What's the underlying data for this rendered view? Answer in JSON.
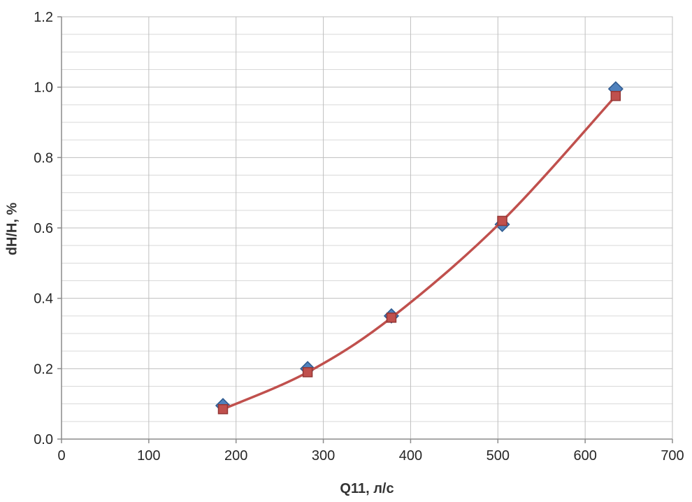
{
  "chart_data": {
    "type": "line",
    "title": "",
    "xlabel": "Q11, л/с",
    "ylabel": "dH/H, %",
    "xlim": [
      0,
      700
    ],
    "ylim": [
      0.0,
      1.2
    ],
    "x_tick_step": 100,
    "y_tick_step": 0.2,
    "y_minor_step": 0.05,
    "grid": true,
    "legend_position": "none",
    "x_tick_labels": [
      "0",
      "100",
      "200",
      "300",
      "400",
      "500",
      "600",
      "700"
    ],
    "y_tick_labels": [
      "0.0",
      "0.2",
      "0.4",
      "0.6",
      "0.8",
      "1.0",
      "1.2"
    ],
    "series": [
      {
        "name": "blue-diamond-points",
        "marker": "diamond",
        "has_line": false,
        "x": [
          185,
          282,
          378,
          505,
          635
        ],
        "y": [
          0.095,
          0.2,
          0.35,
          0.61,
          0.995
        ]
      },
      {
        "name": "red-square-line",
        "marker": "square",
        "has_line": true,
        "smooth": true,
        "x": [
          185,
          282,
          378,
          505,
          635
        ],
        "y": [
          0.085,
          0.19,
          0.345,
          0.62,
          0.975
        ]
      }
    ],
    "colors": {
      "red_series": "#C0504D",
      "red_marker_border": "#943634",
      "blue_series": "#4F81BD",
      "blue_marker_border": "#2E5A8F",
      "grid_major": "#BFBFBF",
      "grid_minor": "#D9D9D9",
      "axis_line": "#8C8C8C",
      "tick_text": "#262626",
      "plot_border": "#BFBFBF"
    }
  }
}
